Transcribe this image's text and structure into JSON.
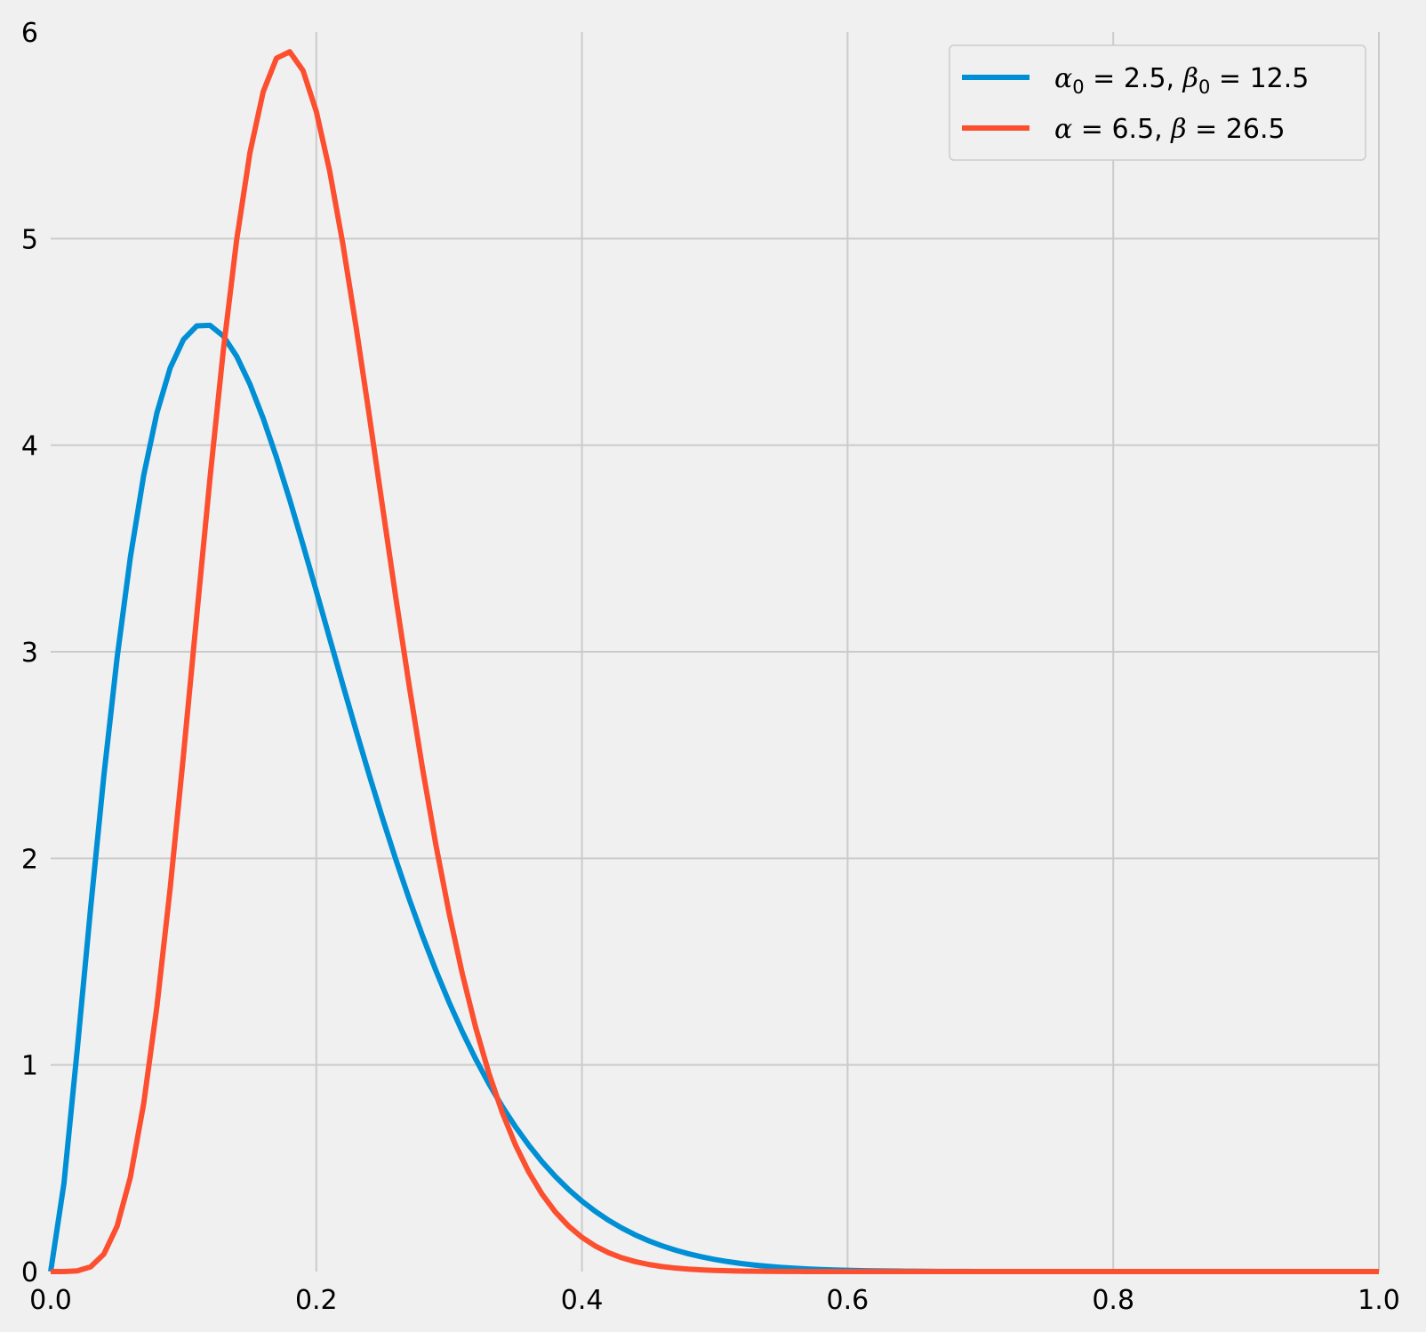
{
  "chart_data": {
    "type": "line",
    "title": "",
    "xlabel": "",
    "ylabel": "",
    "xlim": [
      0.0,
      1.0
    ],
    "ylim": [
      0,
      6
    ],
    "xticks": [
      "0.0",
      "0.2",
      "0.4",
      "0.6",
      "0.8",
      "1.0"
    ],
    "yticks": [
      "0",
      "1",
      "2",
      "3",
      "4",
      "5",
      "6"
    ],
    "grid": true,
    "legend_position": "top-right",
    "series": [
      {
        "name": "α0 = 2.5, β0 = 12.5",
        "legend": {
          "greek1": "α",
          "sub1": "0",
          "v1": "2.5",
          "greek2": "β",
          "sub2": "0",
          "v2": "12.5"
        },
        "color": "#008fd5",
        "alpha": 2.5,
        "beta": 12.5
      },
      {
        "name": "α = 6.5, β = 26.5",
        "legend": {
          "greek1": "α",
          "sub1": "",
          "v1": "6.5",
          "greek2": "β",
          "sub2": "",
          "v2": "26.5"
        },
        "color": "#fc4f30",
        "alpha": 6.5,
        "beta": 26.5
      }
    ]
  }
}
